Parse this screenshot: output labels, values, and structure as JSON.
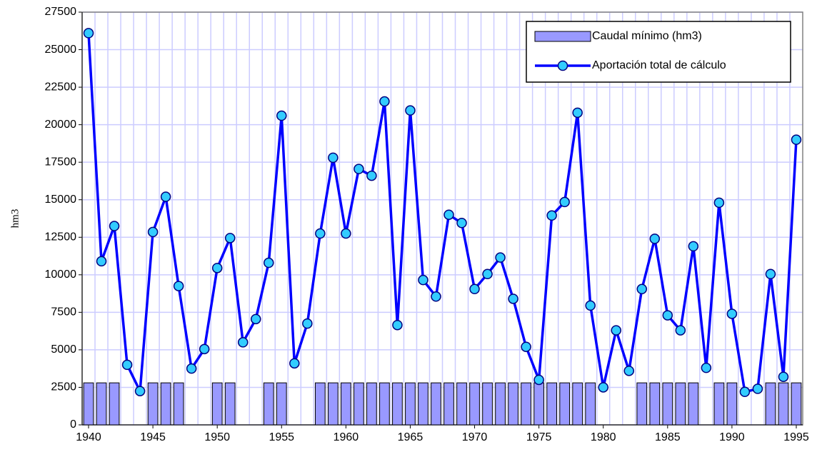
{
  "chart_data": {
    "type": "combo",
    "y_label": "hm3",
    "x": [
      1940,
      1941,
      1942,
      1943,
      1944,
      1945,
      1946,
      1947,
      1948,
      1949,
      1950,
      1951,
      1952,
      1953,
      1954,
      1955,
      1956,
      1957,
      1958,
      1959,
      1960,
      1961,
      1962,
      1963,
      1964,
      1965,
      1966,
      1967,
      1968,
      1969,
      1970,
      1971,
      1972,
      1973,
      1974,
      1975,
      1976,
      1977,
      1978,
      1979,
      1980,
      1981,
      1982,
      1983,
      1984,
      1985,
      1986,
      1987,
      1988,
      1989,
      1990,
      1991,
      1992,
      1993,
      1994,
      1995
    ],
    "xlim": [
      1939.5,
      1995.5
    ],
    "xticks": [
      1940,
      1945,
      1950,
      1955,
      1960,
      1965,
      1970,
      1975,
      1980,
      1985,
      1990,
      1995
    ],
    "ylim": [
      0,
      27500
    ],
    "yticks": [
      0,
      2500,
      5000,
      7500,
      10000,
      12500,
      15000,
      17500,
      20000,
      22500,
      25000,
      27500
    ],
    "grid": true,
    "legend": "top-right",
    "series": [
      {
        "name": "Caudal mínimo (hm3)",
        "type": "bar",
        "color": "#9999ff",
        "values": [
          2800,
          2800,
          2800,
          null,
          null,
          2800,
          2800,
          2800,
          null,
          null,
          2800,
          2800,
          null,
          null,
          2800,
          2800,
          null,
          null,
          2800,
          2800,
          2800,
          2800,
          2800,
          2800,
          2800,
          2800,
          2800,
          2800,
          2800,
          2800,
          2800,
          2800,
          2800,
          2800,
          2800,
          2800,
          2800,
          2800,
          2800,
          2800,
          null,
          null,
          null,
          2800,
          2800,
          2800,
          2800,
          2800,
          null,
          2800,
          2800,
          null,
          null,
          2800,
          2800,
          2800
        ]
      },
      {
        "name": "Aportación total de cálculo",
        "type": "line",
        "color": "#0000ff",
        "marker_color": "#33ccff",
        "values": [
          26100,
          10900,
          13250,
          4000,
          2250,
          12850,
          15200,
          9250,
          3750,
          5050,
          10450,
          12450,
          5500,
          7050,
          10800,
          20600,
          4100,
          6750,
          12750,
          17800,
          12750,
          17050,
          16600,
          21550,
          6650,
          20950,
          9650,
          8550,
          14000,
          13450,
          9050,
          10050,
          11150,
          8400,
          5200,
          3000,
          13950,
          14850,
          20800,
          7950,
          2500,
          6300,
          3600,
          9050,
          12400,
          7300,
          6300,
          11900,
          3800,
          14800,
          7400,
          2200,
          2400,
          10050,
          3200,
          19000
        ]
      }
    ]
  }
}
